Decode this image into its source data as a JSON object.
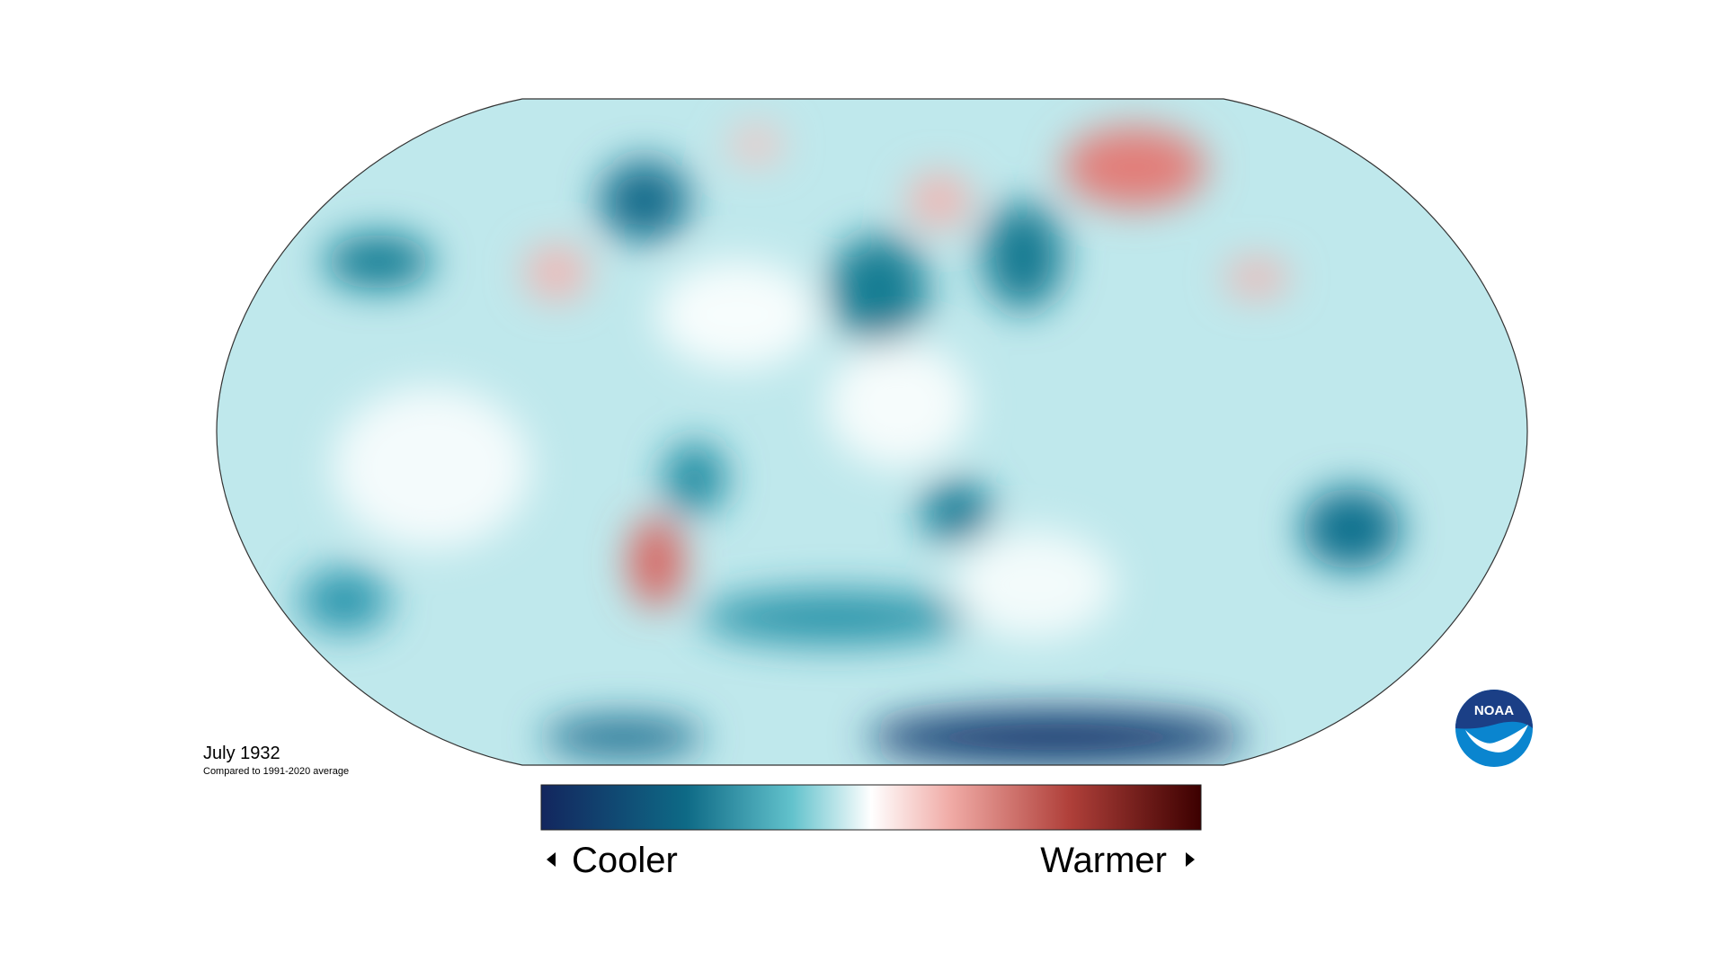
{
  "title": "July 1932",
  "subtitle": "Compared to 1991-2020 average",
  "legend": {
    "low_label": "Cooler",
    "high_label": "Warmer"
  },
  "logo": "NOAA"
}
